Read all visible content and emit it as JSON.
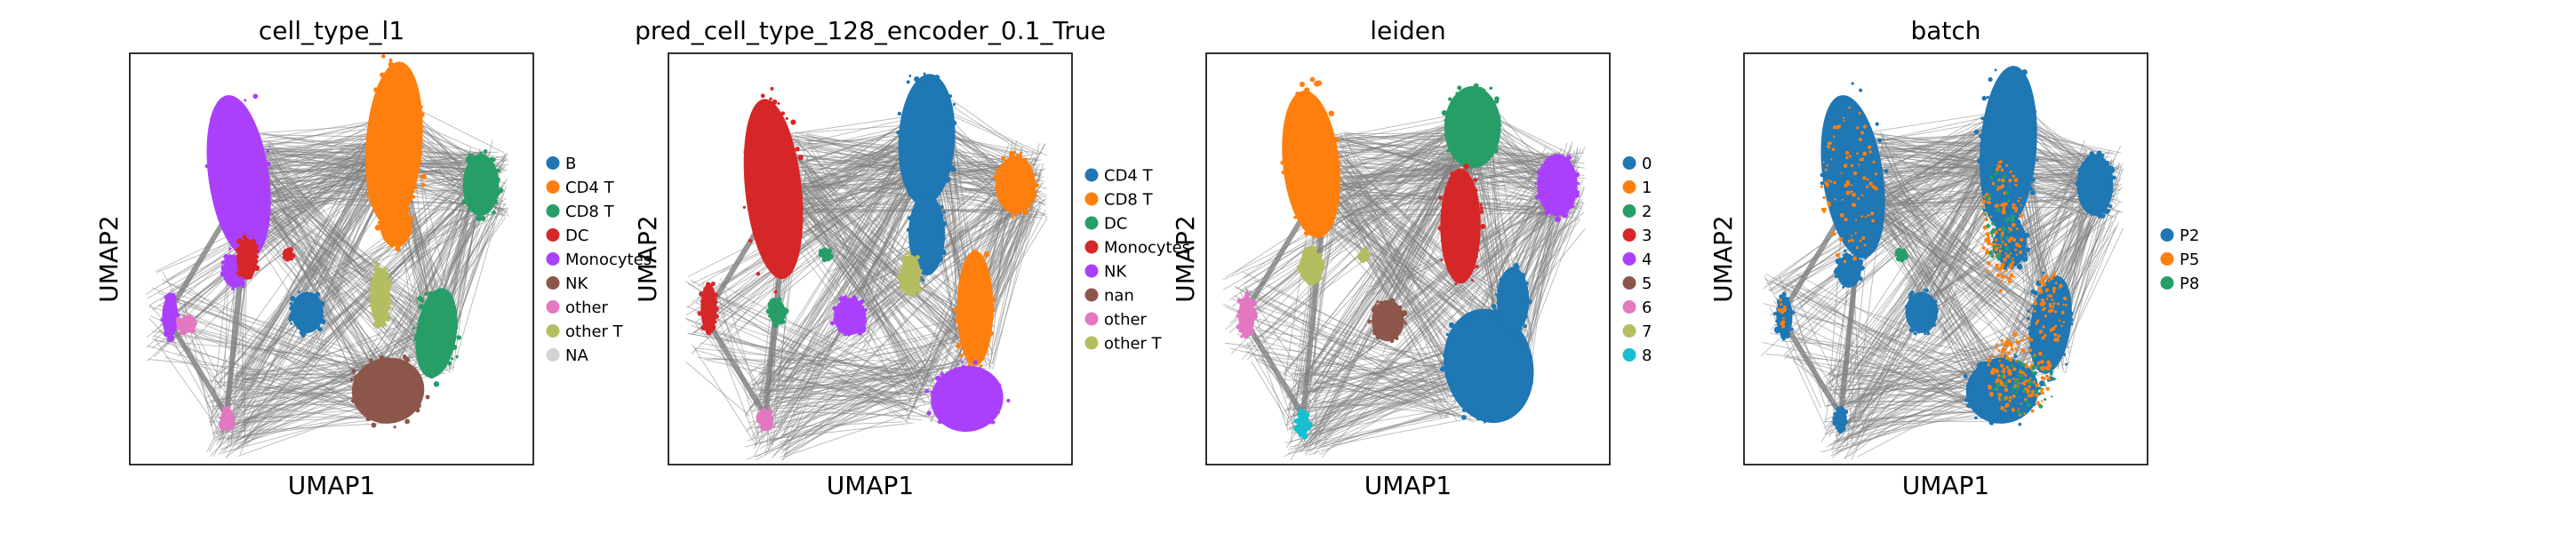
{
  "figure": {
    "xlabel": "UMAP1",
    "ylabel": "UMAP2",
    "edge_color": "#808080",
    "background": "#ffffff"
  },
  "chart_data": [
    {
      "type": "scatter",
      "title": "cell_type_l1",
      "xlabel": "UMAP1",
      "ylabel": "UMAP2",
      "grid": false,
      "legend_position": "right",
      "legend": [
        {
          "name": "B",
          "color": "#1f77b4"
        },
        {
          "name": "CD4 T",
          "color": "#ff7f0e"
        },
        {
          "name": "CD8 T",
          "color": "#279e68"
        },
        {
          "name": "DC",
          "color": "#d62728"
        },
        {
          "name": "Monocytes",
          "color": "#aa40fc"
        },
        {
          "name": "NK",
          "color": "#8c564b"
        },
        {
          "name": "other",
          "color": "#e377c2"
        },
        {
          "name": "other T",
          "color": "#b5bd61"
        },
        {
          "name": "NA",
          "color": "#d3d3d3"
        }
      ]
    },
    {
      "type": "scatter",
      "title": "pred_cell_type_128_encoder_0.1_True",
      "xlabel": "UMAP1",
      "ylabel": "UMAP2",
      "grid": false,
      "legend_position": "right",
      "legend": [
        {
          "name": "CD4 T",
          "color": "#1f77b4"
        },
        {
          "name": "CD8 T",
          "color": "#ff7f0e"
        },
        {
          "name": "DC",
          "color": "#279e68"
        },
        {
          "name": "Monocytes",
          "color": "#d62728"
        },
        {
          "name": "NK",
          "color": "#aa40fc"
        },
        {
          "name": "nan",
          "color": "#8c564b"
        },
        {
          "name": "other",
          "color": "#e377c2"
        },
        {
          "name": "other T",
          "color": "#b5bd61"
        }
      ]
    },
    {
      "type": "scatter",
      "title": "leiden",
      "xlabel": "UMAP1",
      "ylabel": "UMAP2",
      "grid": false,
      "legend_position": "right",
      "legend": [
        {
          "name": "0",
          "color": "#1f77b4"
        },
        {
          "name": "1",
          "color": "#ff7f0e"
        },
        {
          "name": "2",
          "color": "#279e68"
        },
        {
          "name": "3",
          "color": "#d62728"
        },
        {
          "name": "4",
          "color": "#aa40fc"
        },
        {
          "name": "5",
          "color": "#8c564b"
        },
        {
          "name": "6",
          "color": "#e377c2"
        },
        {
          "name": "7",
          "color": "#b5bd61"
        },
        {
          "name": "8",
          "color": "#17becf"
        }
      ]
    },
    {
      "type": "scatter",
      "title": "batch",
      "xlabel": "UMAP1",
      "ylabel": "UMAP2",
      "grid": false,
      "legend_position": "right",
      "legend": [
        {
          "name": "P2",
          "color": "#1f77b4"
        },
        {
          "name": "P5",
          "color": "#ff7f0e"
        },
        {
          "name": "P8",
          "color": "#279e68"
        }
      ]
    }
  ]
}
